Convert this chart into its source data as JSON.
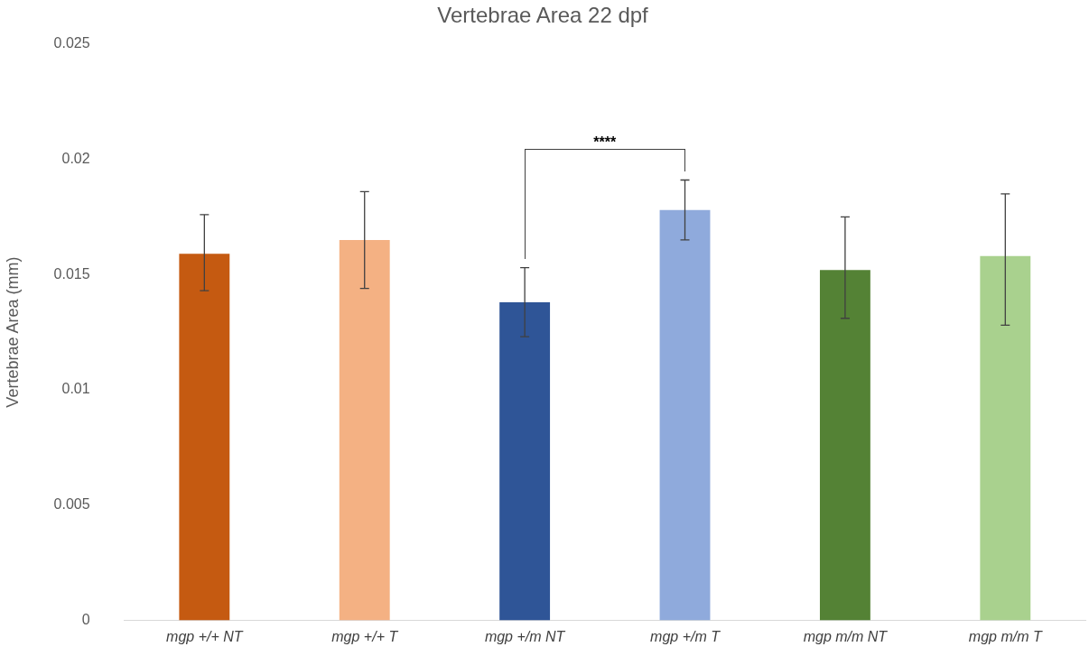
{
  "chart_data": {
    "type": "bar",
    "title": "Vertebrae Area 22 dpf",
    "ylabel": "Vertebrae Area (mm)",
    "categories": [
      "mgp +/+ NT",
      "mgp +/+ T",
      "mgp +/m NT",
      "mgp +/m T",
      "mgp m/m NT",
      "mgp m/m T"
    ],
    "values": [
      0.0159,
      0.0165,
      0.0138,
      0.0178,
      0.0152,
      0.0158
    ],
    "colors": [
      "#c55a11",
      "#f4b183",
      "#2f5597",
      "#8faadc",
      "#548235",
      "#a9d18e"
    ],
    "errors": [
      [
        0.0143,
        0.0176
      ],
      [
        0.0144,
        0.0186
      ],
      [
        0.0123,
        0.0153
      ],
      [
        0.0165,
        0.0191
      ],
      [
        0.0131,
        0.0175
      ],
      [
        0.0128,
        0.0185
      ]
    ],
    "ylim": [
      0,
      0.025
    ],
    "yticks": [
      0,
      0.005,
      0.01,
      0.015,
      0.02,
      0.025
    ],
    "grid": false,
    "legend": false,
    "annotations": [
      "****"
    ]
  }
}
